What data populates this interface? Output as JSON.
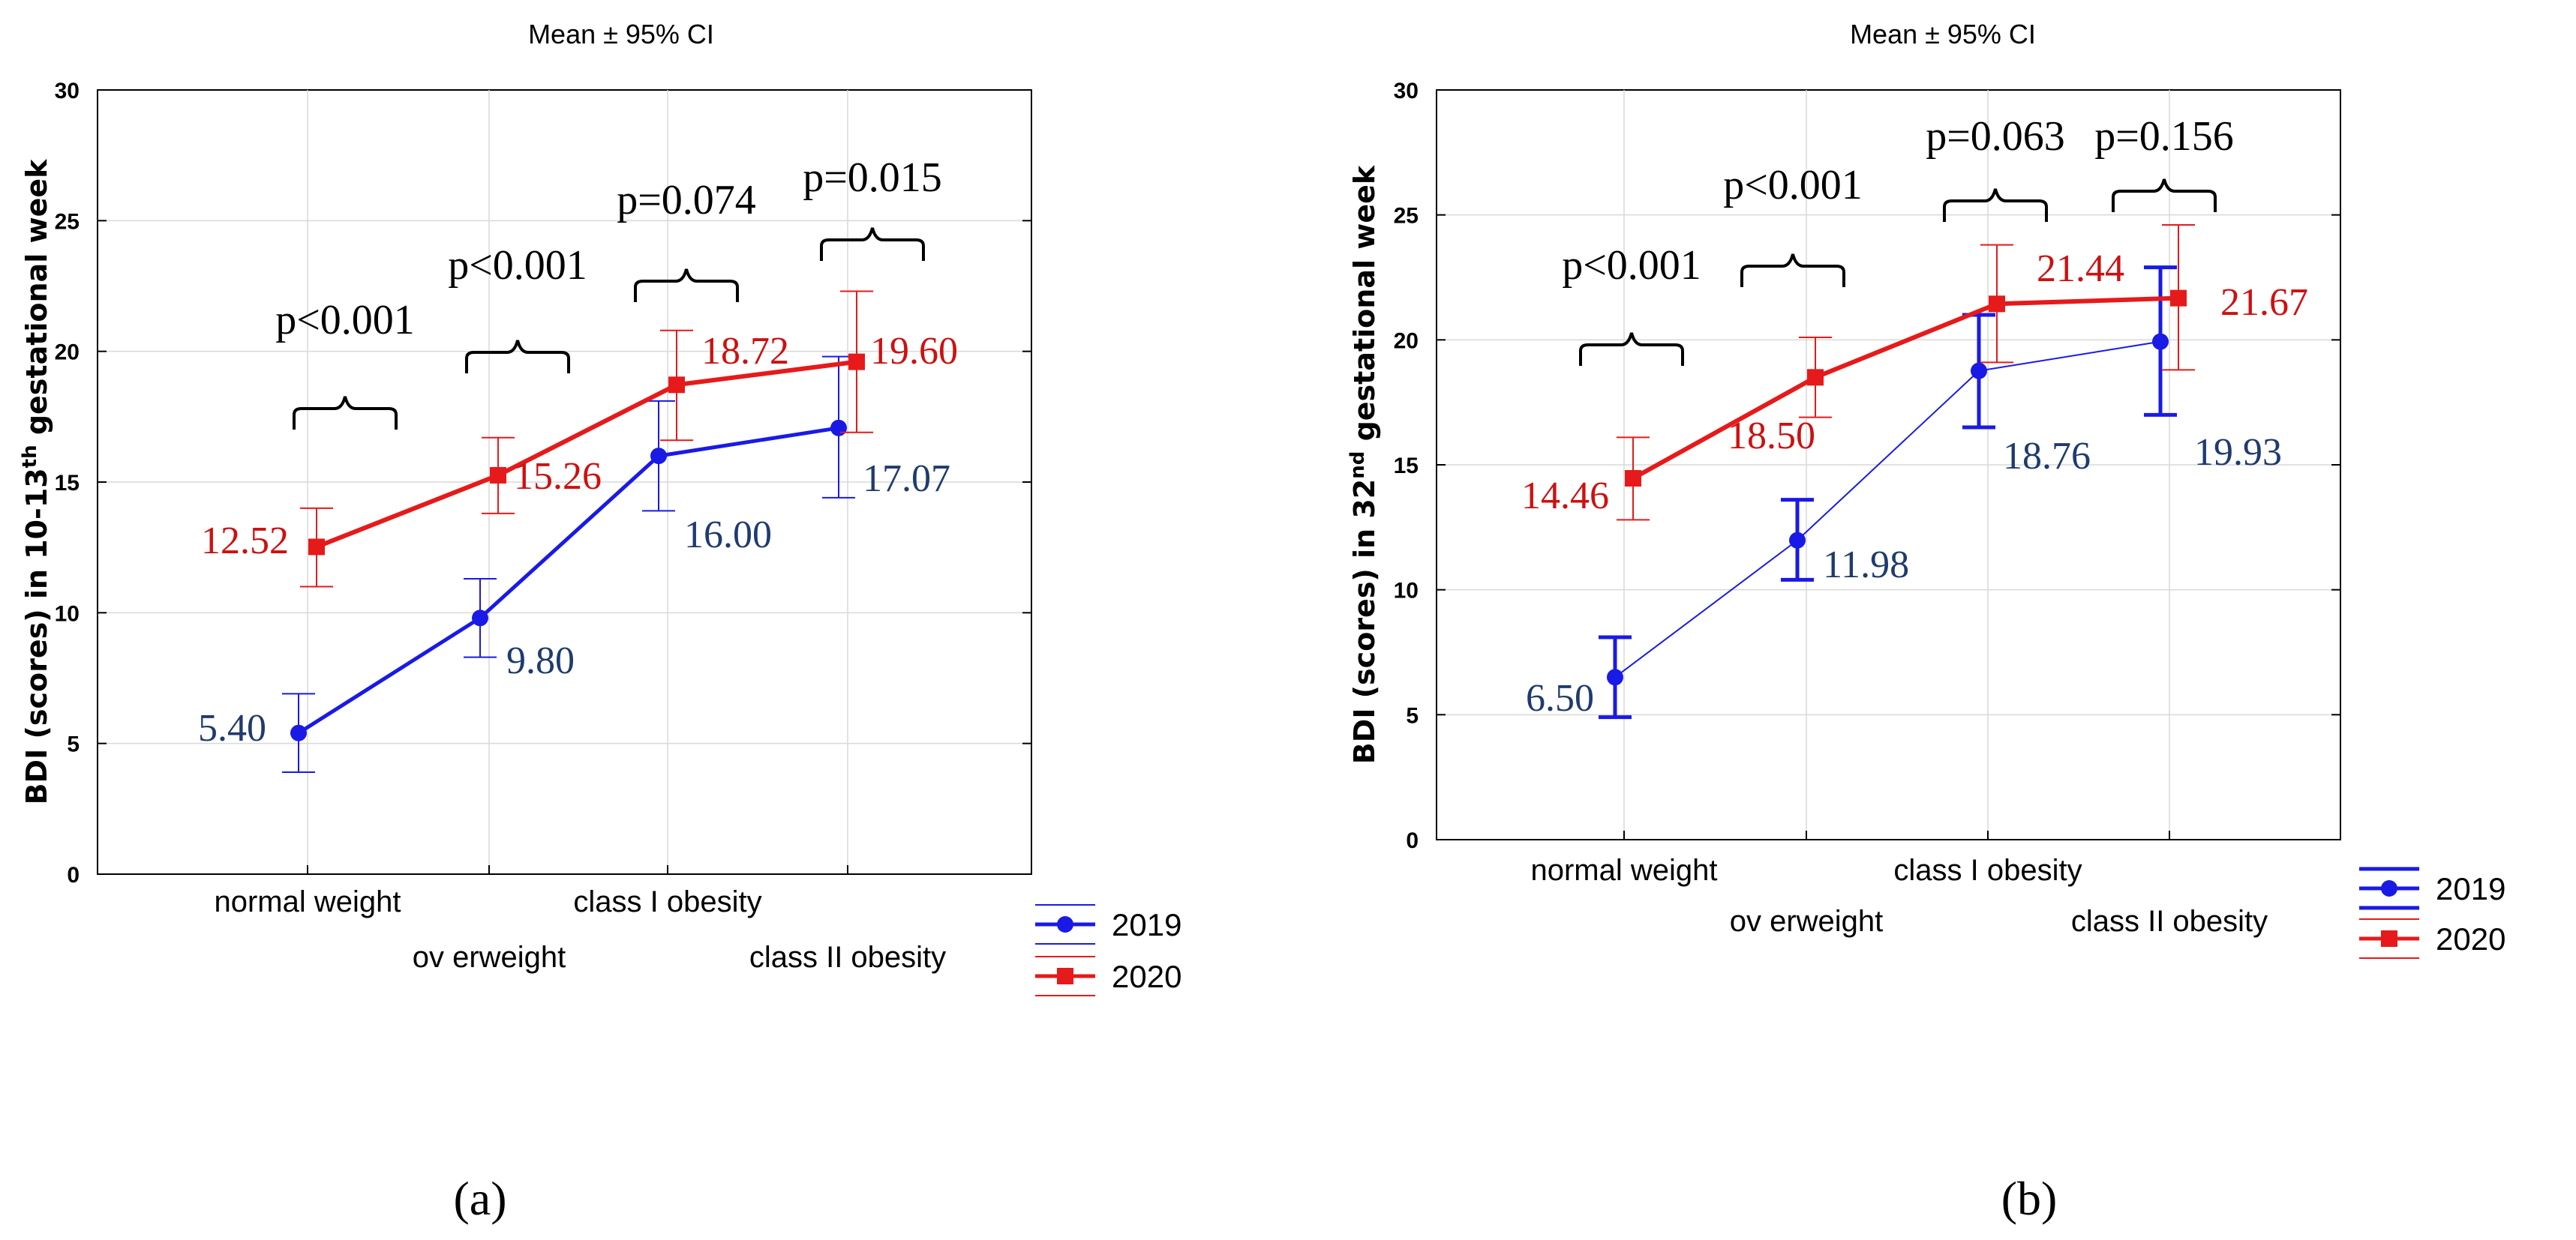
{
  "colors": {
    "series_2019": "#1a1ae6",
    "series_2020": "#e61a1a",
    "label_2019": "#1f3b6e",
    "label_2020": "#cc1111",
    "grid": "#d9d9d9"
  },
  "chart_data": [
    {
      "type": "line",
      "panel": "(a)",
      "title": "Mean ± 95% CI",
      "ylabel": "BDI (scores) in 10-13",
      "ylabel_sup": "th",
      "ylabel_tail": " gestational week",
      "ylim": [
        0,
        30
      ],
      "yticks": [
        0,
        5,
        10,
        15,
        20,
        25,
        30
      ],
      "categories": [
        "normal weight",
        "ov erweight",
        "class I obesity",
        "class II obesity"
      ],
      "series": [
        {
          "name": "2019",
          "values": [
            5.4,
            9.8,
            16.0,
            17.07
          ],
          "lower": [
            3.9,
            8.3,
            13.9,
            14.4
          ],
          "upper": [
            6.9,
            11.3,
            18.1,
            19.8
          ],
          "labels": [
            "5.40",
            "9.80",
            "16.00",
            "17.07"
          ]
        },
        {
          "name": "2020",
          "values": [
            12.52,
            15.26,
            18.72,
            19.6
          ],
          "lower": [
            11.0,
            13.8,
            16.6,
            16.9
          ],
          "upper": [
            14.0,
            16.7,
            20.8,
            22.3
          ],
          "labels": [
            "12.52",
            "15.26",
            "18.72",
            "19.60"
          ]
        }
      ],
      "pvalues": [
        "p<0.001",
        "p<0.001",
        "p=0.074",
        "p=0.015"
      ],
      "legend": [
        "2019",
        "2020"
      ]
    },
    {
      "type": "line",
      "panel": "(b)",
      "title": "Mean ± 95% CI",
      "ylabel": "BDI (scores) in 32",
      "ylabel_sup": "nd",
      "ylabel_tail": " gestational week",
      "ylim": [
        0,
        30
      ],
      "yticks": [
        0,
        5,
        10,
        15,
        20,
        25,
        30
      ],
      "categories": [
        "normal weight",
        "ov erweight",
        "class I obesity",
        "class II obesity"
      ],
      "series": [
        {
          "name": "2019",
          "values": [
            6.5,
            11.98,
            18.76,
            19.93
          ],
          "lower": [
            4.9,
            10.4,
            16.5,
            17.0
          ],
          "upper": [
            8.1,
            13.6,
            21.0,
            22.9
          ],
          "labels": [
            "6.50",
            "11.98",
            "18.76",
            "19.93"
          ]
        },
        {
          "name": "2020",
          "values": [
            14.46,
            18.5,
            21.44,
            21.67
          ],
          "lower": [
            12.8,
            16.9,
            19.1,
            18.8
          ],
          "upper": [
            16.1,
            20.1,
            23.8,
            24.6
          ],
          "labels": [
            "14.46",
            "18.50",
            "21.44",
            "21.67"
          ]
        }
      ],
      "pvalues": [
        "p<0.001",
        "p<0.001",
        "p=0.063",
        "p=0.156"
      ],
      "legend": [
        "2019",
        "2020"
      ]
    }
  ]
}
